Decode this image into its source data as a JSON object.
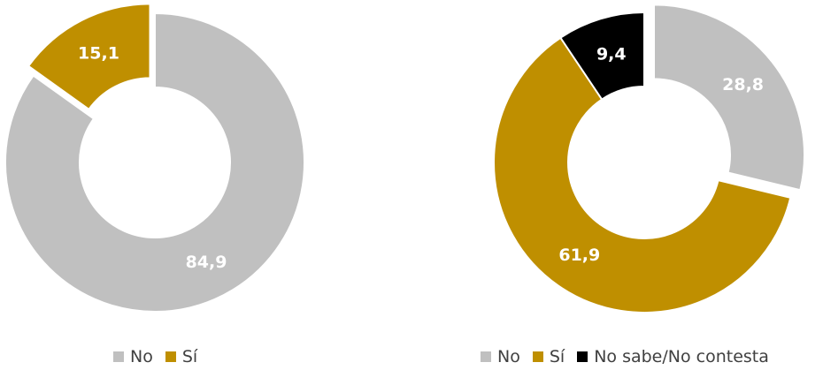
{
  "chart_data": [
    {
      "type": "donut",
      "categories": [
        "No",
        "Sí"
      ],
      "values": [
        84.9,
        15.1
      ],
      "labels": [
        "84,9",
        "15,1"
      ],
      "colors": [
        "#c0c0c0",
        "#bf8f00"
      ],
      "label_colors": [
        "#ffffff",
        "#ffffff"
      ],
      "exploded": [
        false,
        true
      ],
      "legend": [
        "No",
        "Sí"
      ],
      "legend_position": "bottom"
    },
    {
      "type": "donut",
      "categories": [
        "No",
        "Sí",
        "No sabe/No contesta"
      ],
      "values": [
        28.8,
        61.9,
        9.4
      ],
      "labels": [
        "28,8",
        "61,9",
        "9,4"
      ],
      "colors": [
        "#c0c0c0",
        "#bf8f00",
        "#000000"
      ],
      "label_colors": [
        "#ffffff",
        "#ffffff",
        "#ffffff"
      ],
      "exploded": [
        true,
        false,
        false
      ],
      "legend": [
        "No",
        "Sí",
        "No sabe/No contesta"
      ],
      "legend_position": "bottom"
    }
  ]
}
